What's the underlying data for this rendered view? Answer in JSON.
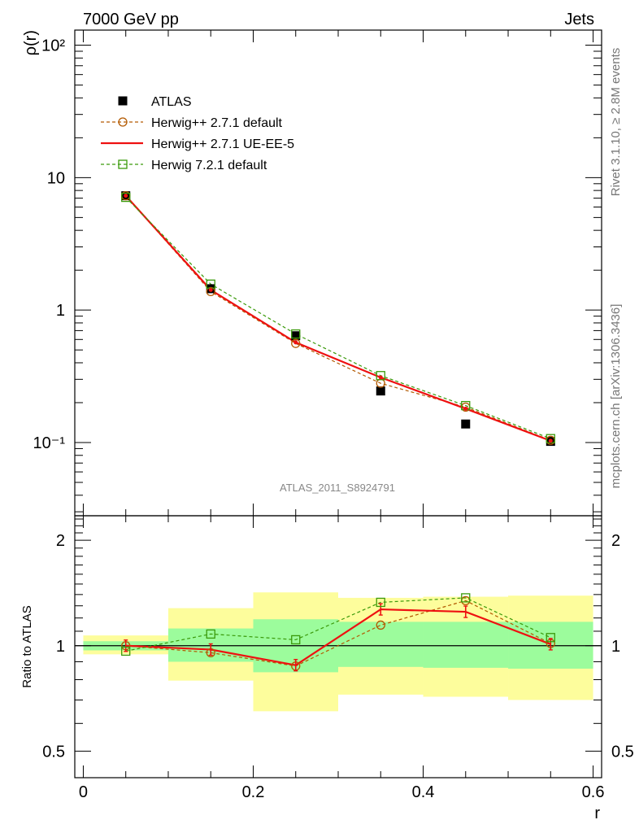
{
  "header": {
    "left": "7000 GeV pp",
    "right": "Jets"
  },
  "side_labels": {
    "rivet": "Rivet 3.1.10, ≥ 2.8M events",
    "mcplots": "mcplots.cern.ch [arXiv:1306.3436]"
  },
  "analysis_label": "ATLAS_2011_S8924791",
  "colors": {
    "atlas": "#000000",
    "herwigpp_default": "#b35900",
    "herwigpp_ue": "#ee1111",
    "herwig7": "#3a9a0a",
    "band_inner": "#9cfc9c",
    "band_outer": "#fdfd9c"
  },
  "chart_data": [
    {
      "type": "scatter",
      "panel": "main",
      "ylabel": "ρ(r)",
      "yscale": "log",
      "ylim": [
        0.028,
        130
      ],
      "xlim": [
        -0.01,
        0.61
      ],
      "y_tick_labels": [
        "10⁻¹",
        "1",
        "10",
        "10²"
      ],
      "x": [
        0.05,
        0.15,
        0.25,
        0.35,
        0.45,
        0.55
      ],
      "series": [
        {
          "name": "ATLAS",
          "marker": "filled-square",
          "values": [
            7.3,
            1.45,
            0.64,
            0.245,
            0.138,
            0.102
          ]
        },
        {
          "name": "Herwig++ 2.7.1 default",
          "marker": "open-circle",
          "line": "dashed",
          "values": [
            7.3,
            1.38,
            0.56,
            0.28,
            0.185,
            0.104
          ]
        },
        {
          "name": "Herwig++ 2.7.1 UE-EE-5",
          "marker": "none",
          "line": "solid",
          "values": [
            7.3,
            1.42,
            0.57,
            0.31,
            0.18,
            0.103
          ]
        },
        {
          "name": "Herwig 7.2.1 default",
          "marker": "open-square",
          "line": "dashed",
          "values": [
            7.1,
            1.57,
            0.66,
            0.32,
            0.19,
            0.107
          ]
        }
      ],
      "legend_position": "top-left"
    },
    {
      "type": "line",
      "panel": "ratio",
      "ylabel": "Ratio to ATLAS",
      "xlabel": "r",
      "yscale": "log",
      "ylim": [
        0.42,
        2.35
      ],
      "xlim": [
        -0.01,
        0.61
      ],
      "x_ticks": [
        0,
        0.2,
        0.4,
        0.6
      ],
      "x_tick_labels": [
        "0",
        "0.2",
        "0.4",
        "0.6"
      ],
      "y_ticks": [
        0.5,
        1,
        2
      ],
      "y_tick_labels": [
        "0.5",
        "1",
        "2"
      ],
      "bins": [
        [
          0.0,
          0.1
        ],
        [
          0.1,
          0.2
        ],
        [
          0.2,
          0.3
        ],
        [
          0.3,
          0.4
        ],
        [
          0.4,
          0.5
        ],
        [
          0.5,
          0.6
        ]
      ],
      "band_inner": [
        [
          0.97,
          1.03
        ],
        [
          0.9,
          1.12
        ],
        [
          0.84,
          1.19
        ],
        [
          0.87,
          1.17
        ],
        [
          0.865,
          1.17
        ],
        [
          0.86,
          1.17
        ]
      ],
      "band_outer": [
        [
          0.945,
          1.07
        ],
        [
          0.795,
          1.28
        ],
        [
          0.65,
          1.42
        ],
        [
          0.725,
          1.37
        ],
        [
          0.715,
          1.38
        ],
        [
          0.7,
          1.39
        ]
      ],
      "x": [
        0.05,
        0.15,
        0.25,
        0.35,
        0.45,
        0.55
      ],
      "series": [
        {
          "name": "Herwig++ 2.7.1 default",
          "marker": "open-circle",
          "line": "dashed",
          "values": [
            1.0,
            0.955,
            0.875,
            1.145,
            1.345,
            1.015
          ]
        },
        {
          "name": "Herwig++ 2.7.1 UE-EE-5",
          "marker": "none",
          "line": "solid",
          "errors": true,
          "values": [
            1.0,
            0.975,
            0.88,
            1.27,
            1.25,
            1.01
          ]
        },
        {
          "name": "Herwig 7.2.1 default",
          "marker": "open-square",
          "line": "dashed",
          "values": [
            0.965,
            1.08,
            1.04,
            1.33,
            1.37,
            1.055
          ]
        }
      ]
    }
  ]
}
